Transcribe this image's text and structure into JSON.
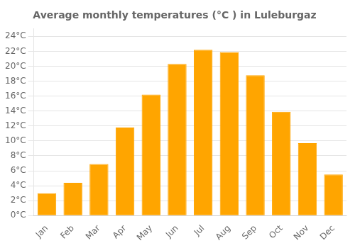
{
  "chart_data": {
    "type": "bar",
    "title": "Average monthly temperatures (°C ) in Luleburgaz",
    "categories": [
      "Jan",
      "Feb",
      "Mar",
      "Apr",
      "May",
      "Jun",
      "Jul",
      "Aug",
      "Sep",
      "Oct",
      "Nov",
      "Dec"
    ],
    "values": [
      3.0,
      4.4,
      6.9,
      11.8,
      16.2,
      20.3,
      22.2,
      21.9,
      18.8,
      13.9,
      9.7,
      5.5
    ],
    "color": "#FFA500",
    "ylim": [
      0,
      25
    ],
    "yticks": [
      {
        "value": 0,
        "label": "0°C"
      },
      {
        "value": 2,
        "label": "2°C"
      },
      {
        "value": 4,
        "label": "4°C"
      },
      {
        "value": 6,
        "label": "6°C"
      },
      {
        "value": 8,
        "label": "8°C"
      },
      {
        "value": 10,
        "label": "10°C"
      },
      {
        "value": 12,
        "label": "12°C"
      },
      {
        "value": 14,
        "label": "14°C"
      },
      {
        "value": 16,
        "label": "16°C"
      },
      {
        "value": 18,
        "label": "18°C"
      },
      {
        "value": 20,
        "label": "20°C"
      },
      {
        "value": 22,
        "label": "22°C"
      },
      {
        "value": 24,
        "label": "24°C"
      }
    ],
    "grid": true
  }
}
